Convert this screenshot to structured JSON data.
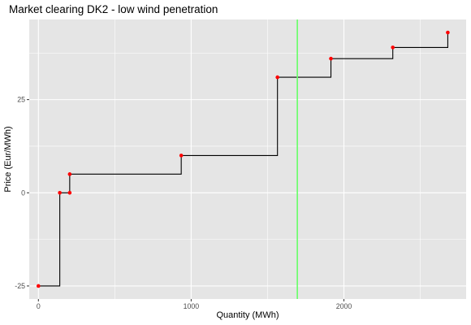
{
  "chart_data": {
    "type": "line",
    "title": "Market clearing DK2 - low wind penetration",
    "xlabel": "Quantity (MWh)",
    "ylabel": "Price (Eur/MWh)",
    "xlim": [
      -60,
      2800
    ],
    "ylim": [
      -28.5,
      46.5
    ],
    "x_ticks": [
      0,
      1000,
      2000
    ],
    "x_tick_labels": [
      "0",
      "1000",
      "2000"
    ],
    "y_ticks": [
      -25,
      0,
      25
    ],
    "y_tick_labels": [
      "-25",
      "0",
      "25"
    ],
    "grid": true,
    "legend": "none",
    "step_points": [
      {
        "x": 0,
        "y": -25
      },
      {
        "x": 140,
        "y": 0
      },
      {
        "x": 205,
        "y": 0
      },
      {
        "x": 205,
        "y": 5
      },
      {
        "x": 935,
        "y": 10
      },
      {
        "x": 1565,
        "y": 31
      },
      {
        "x": 1915,
        "y": 36
      },
      {
        "x": 2320,
        "y": 39
      },
      {
        "x": 2680,
        "y": 43
      }
    ],
    "clearing_quantity": 1695,
    "colors": {
      "panel": "#e5e5e5",
      "grid": "#ffffff",
      "step_line": "#000000",
      "points": "#ff0000",
      "clearing_line": "#66ff66"
    }
  }
}
